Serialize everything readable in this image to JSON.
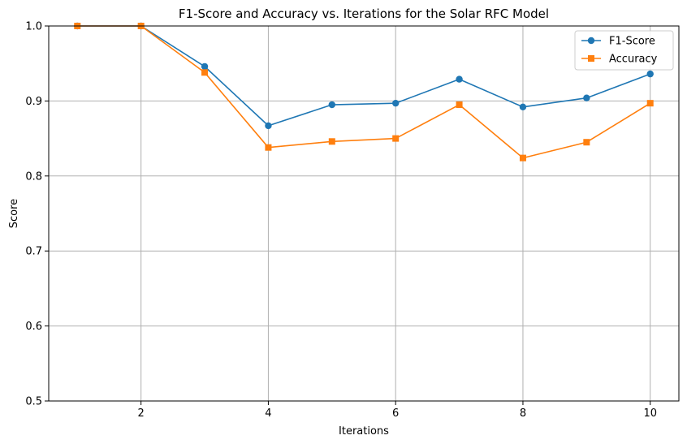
{
  "chart_data": {
    "type": "line",
    "title": "F1-Score and Accuracy vs. Iterations for the Solar RFC Model",
    "xlabel": "Iterations",
    "ylabel": "Score",
    "x": [
      1,
      2,
      3,
      4,
      5,
      6,
      7,
      8,
      9,
      10
    ],
    "xlim": [
      0.55,
      10.45
    ],
    "ylim": [
      0.5,
      1.0
    ],
    "xticks": [
      2,
      4,
      6,
      8,
      10
    ],
    "xtick_labels": [
      "2",
      "4",
      "6",
      "8",
      "10"
    ],
    "yticks": [
      0.5,
      0.6,
      0.7,
      0.8,
      0.9,
      1.0
    ],
    "ytick_labels": [
      "0.5",
      "0.6",
      "0.7",
      "0.8",
      "0.9",
      "1.0"
    ],
    "grid": true,
    "legend_position": "top-right",
    "series": [
      {
        "name": "F1-Score",
        "marker": "circle",
        "color": "#1f77b4",
        "values": [
          1.0,
          1.0,
          0.946,
          0.867,
          0.895,
          0.897,
          0.929,
          0.892,
          0.904,
          0.936
        ]
      },
      {
        "name": "Accuracy",
        "marker": "square",
        "color": "#ff7f0e",
        "values": [
          1.0,
          1.0,
          0.938,
          0.838,
          0.846,
          0.85,
          0.895,
          0.824,
          0.845,
          0.897
        ]
      }
    ]
  }
}
